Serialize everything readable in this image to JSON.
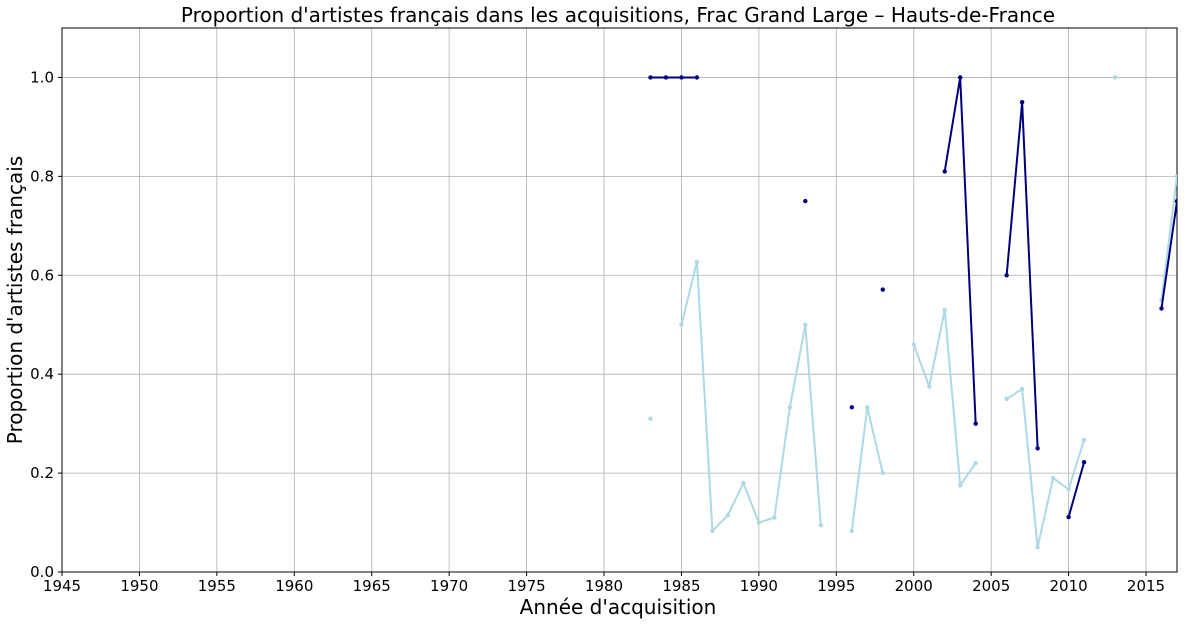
{
  "chart_data": {
    "type": "line",
    "title": "Proportion d'artistes français dans les acquisitions, Frac Grand Large – Hauts-de-France",
    "xlabel": "Année d'acquisition",
    "ylabel": "Proportion d'artistes français",
    "xlim": [
      1945,
      2017
    ],
    "ylim": [
      0,
      1.1
    ],
    "x_ticks": [
      1945,
      1950,
      1955,
      1960,
      1965,
      1970,
      1975,
      1980,
      1985,
      1990,
      1995,
      2000,
      2005,
      2010,
      2015
    ],
    "y_ticks": [
      0.0,
      0.2,
      0.4,
      0.6,
      0.8,
      1.0
    ],
    "y_tick_labels": [
      "0.0",
      "0.2",
      "0.4",
      "0.6",
      "0.8",
      "1.0"
    ],
    "grid": true,
    "legend": "none",
    "series": [
      {
        "color": "#add8e6",
        "points": [
          [
            1983,
            0.31
          ],
          [
            1985,
            0.5
          ],
          [
            1986,
            0.627
          ],
          [
            1987,
            0.083
          ],
          [
            1988,
            0.115
          ],
          [
            1989,
            0.18
          ],
          [
            1990,
            0.1
          ],
          [
            1991,
            0.11
          ],
          [
            1992,
            0.333
          ],
          [
            1993,
            0.5
          ],
          [
            1994,
            0.095
          ],
          [
            1996,
            0.083
          ],
          [
            1997,
            0.333
          ],
          [
            1998,
            0.2
          ],
          [
            2000,
            0.46
          ],
          [
            2001,
            0.375
          ],
          [
            2002,
            0.53
          ],
          [
            2003,
            0.175
          ],
          [
            2004,
            0.22
          ],
          [
            2006,
            0.35
          ],
          [
            2007,
            0.37
          ],
          [
            2008,
            0.05
          ],
          [
            2009,
            0.19
          ],
          [
            2010,
            0.167
          ],
          [
            2011,
            0.267
          ],
          [
            2013,
            1.0
          ],
          [
            2016,
            0.55
          ],
          [
            2017,
            0.8
          ]
        ]
      },
      {
        "color": "#00007f",
        "points": [
          [
            1983,
            1.0
          ],
          [
            1984,
            1.0
          ],
          [
            1985,
            1.0
          ],
          [
            1986,
            1.0
          ],
          [
            1993,
            0.75
          ],
          [
            1996,
            0.333
          ],
          [
            1998,
            0.571
          ],
          [
            2002,
            0.81
          ],
          [
            2003,
            1.0
          ],
          [
            2004,
            0.3
          ],
          [
            2006,
            0.6
          ],
          [
            2007,
            0.95
          ],
          [
            2008,
            0.25
          ],
          [
            2010,
            0.111
          ],
          [
            2011,
            0.222
          ],
          [
            2016,
            0.533
          ],
          [
            2017,
            0.75
          ]
        ]
      }
    ]
  }
}
